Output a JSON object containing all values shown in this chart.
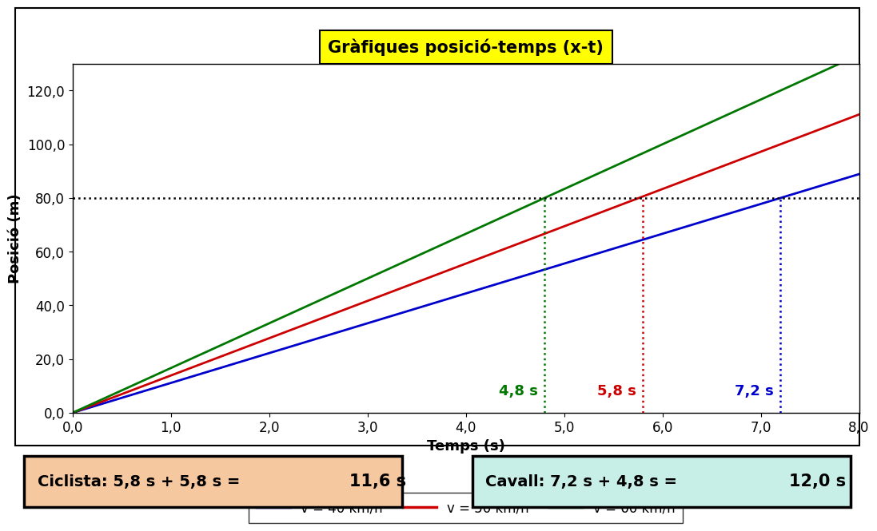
{
  "title": "Gràfiques posició-temps (x-t)",
  "xlabel": "Temps (s)",
  "ylabel": "Posició (m)",
  "xlim": [
    0,
    8.0
  ],
  "ylim": [
    0,
    130
  ],
  "xticks": [
    0.0,
    1.0,
    2.0,
    3.0,
    4.0,
    5.0,
    6.0,
    7.0,
    8.0
  ],
  "yticks": [
    0.0,
    20.0,
    40.0,
    60.0,
    80.0,
    100.0,
    120.0
  ],
  "lines": [
    {
      "v_kmh": 40,
      "color": "#0000CC",
      "label": "v = 40 km/h"
    },
    {
      "v_kmh": 50,
      "color": "#CC0000",
      "label": "v = 50 km/h"
    },
    {
      "v_kmh": 60,
      "color": "#007700",
      "label": "v = 60 km/h"
    }
  ],
  "vlines": [
    {
      "x": 4.8,
      "color": "#007700",
      "label": "4,8 s"
    },
    {
      "x": 5.8,
      "color": "#CC0000",
      "label": "5,8 s"
    },
    {
      "x": 7.2,
      "color": "#0000CC",
      "label": "7,2 s"
    }
  ],
  "box1_bg": "#F5C8A0",
  "box2_bg": "#C8EEE8",
  "title_bg": "#FFFF00",
  "title_fontsize": 15,
  "axis_label_fontsize": 13,
  "tick_fontsize": 12,
  "legend_fontsize": 12,
  "ann_fontsize": 13
}
